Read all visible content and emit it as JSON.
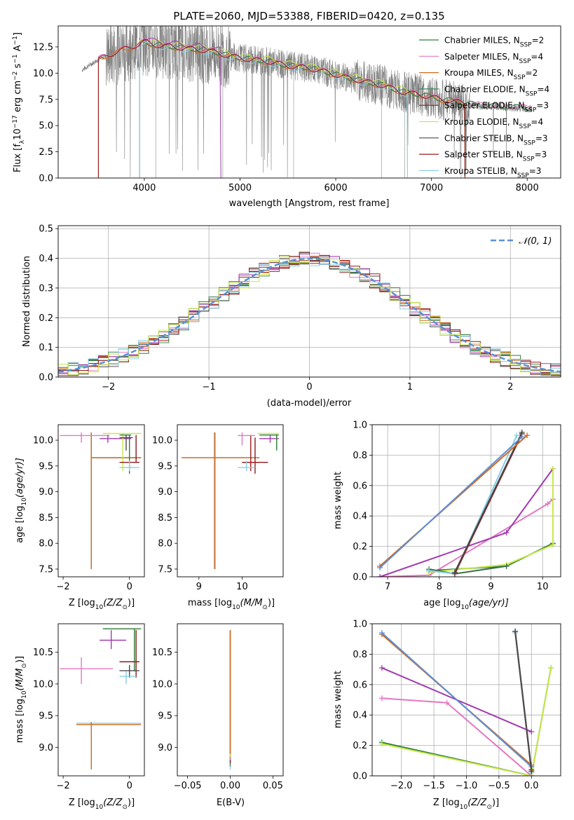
{
  "figure_title": "PLATE=2060, MJD=53388, FIBERID=0420, z=0.135",
  "colors": {
    "spectrum": "#808080",
    "models": [
      "#2e7d3a",
      "#e377c2",
      "#d2691e",
      "#3c8c56",
      "#8b1a1a",
      "#a13ab0",
      "#4a4a4a",
      "#9e1a1a",
      "#87cfe6"
    ],
    "normal": "#5b8fd6",
    "lime": "#c7e84a"
  },
  "chart_data": [
    {
      "id": "spectrum",
      "type": "line",
      "title": "PLATE=2060, MJD=53388, FIBERID=0420, z=0.135",
      "xlabel": "wavelength [Angstrom, rest frame]",
      "ylabel_main": "Flux [f",
      "ylabel_sub": "λ",
      "ylabel_rest": "10",
      "ylabel_exp": "−17",
      "ylabel_tail": " erg cm",
      "ylabel_exp2": "−2",
      "ylabel_tail2": " s",
      "ylabel_exp3": "−1",
      "ylabel_tail3": " A",
      "ylabel_exp4": "−1",
      "ylabel_end": "]",
      "xlim": [
        3100,
        8350
      ],
      "ylim": [
        0,
        14.5
      ],
      "xticks": [
        4000,
        5000,
        6000,
        7000,
        8000
      ],
      "yticks": [
        0.0,
        2.5,
        5.0,
        7.5,
        10.0,
        12.5
      ],
      "ytick_labels": [
        "0.0",
        "2.5",
        "5.0",
        "7.5",
        "10.0",
        "12.5"
      ],
      "continuum": [
        [
          3350,
          10.3
        ],
        [
          3500,
          11.2
        ],
        [
          3700,
          12.0
        ],
        [
          3900,
          12.6
        ],
        [
          4000,
          13.0
        ],
        [
          4100,
          12.7
        ],
        [
          4300,
          12.5
        ],
        [
          4500,
          12.3
        ],
        [
          4700,
          12.1
        ],
        [
          4900,
          11.6
        ],
        [
          5100,
          11.3
        ],
        [
          5300,
          11.1
        ],
        [
          5500,
          10.7
        ],
        [
          5700,
          10.5
        ],
        [
          5900,
          10.1
        ],
        [
          6100,
          9.6
        ],
        [
          6300,
          9.2
        ],
        [
          6500,
          8.8
        ],
        [
          6700,
          8.2
        ],
        [
          6900,
          7.9
        ],
        [
          7100,
          7.5
        ],
        [
          7300,
          7.2
        ],
        [
          7500,
          6.9
        ],
        [
          7700,
          6.8
        ],
        [
          7900,
          6.7
        ],
        [
          8050,
          6.6
        ]
      ],
      "legend": [
        {
          "label": "Chabrier MILES, N",
          "sub": "SSP",
          "eq": "=2"
        },
        {
          "label": "Salpeter MILES, N",
          "sub": "SSP",
          "eq": "=4"
        },
        {
          "label": "Kroupa MILES, N",
          "sub": "SSP",
          "eq": "=2"
        },
        {
          "label": "Chabrier ELODIE, N",
          "sub": "SSP",
          "eq": "=4"
        },
        {
          "label": "Salpeter ELODIE, N",
          "sub": "SSP",
          "eq": "=3"
        },
        {
          "label": "Kroupa ELODIE, N",
          "sub": "SSP",
          "eq": "=4"
        },
        {
          "label": "Chabrier STELIB, N",
          "sub": "SSP",
          "eq": "=3"
        },
        {
          "label": "Salpeter STELIB, N",
          "sub": "SSP",
          "eq": "=3"
        },
        {
          "label": "Kroupa STELIB, N",
          "sub": "SSP",
          "eq": "=3"
        }
      ],
      "legend_position": "top-right",
      "grid": false
    },
    {
      "id": "residuals",
      "type": "histogram",
      "xlabel": "(data-model)/error",
      "ylabel": "Normed distribution",
      "xlim": [
        -2.5,
        2.5
      ],
      "ylim": [
        0,
        0.51
      ],
      "xticks": [
        -2,
        -1,
        0,
        1,
        2
      ],
      "xtick_labels": [
        "−2",
        "−1",
        "0",
        "1",
        "2"
      ],
      "yticks": [
        0.0,
        0.1,
        0.2,
        0.3,
        0.4,
        0.5
      ],
      "ytick_labels": [
        "0.0",
        "0.1",
        "0.2",
        "0.3",
        "0.4",
        "0.5"
      ],
      "bin_width": 0.1,
      "legend": [
        {
          "label": "𝒩(0, 1)"
        }
      ],
      "legend_position": "top-right",
      "grid": true
    },
    {
      "id": "age_vs_Z",
      "type": "errorbar",
      "xlabel": "Z [log",
      "xlabel_sub": "10",
      "xlabel_end": "(Z/Z",
      "xlabel_sun": "⊙",
      "xlabel_close": ")]",
      "ylabel": "age  [log",
      "ylabel_sub": "10",
      "ylabel_end": "(age/yr)]",
      "xlim": [
        -2.15,
        0.45
      ],
      "ylim": [
        7.35,
        10.3
      ],
      "xticks": [
        -2,
        0
      ],
      "xtick_labels": [
        "−2",
        "0"
      ],
      "yticks": [
        7.5,
        8.0,
        8.5,
        9.0,
        9.5,
        10.0
      ],
      "ytick_labels": [
        "7.5",
        "8.0",
        "8.5",
        "9.0",
        "9.5",
        "10.0"
      ]
    },
    {
      "id": "age_vs_mass",
      "type": "errorbar",
      "xlabel": "mass [log",
      "xlabel_sub": "10",
      "xlabel_end": "(M/M",
      "xlabel_sun": "⊙",
      "xlabel_close": ")]",
      "xlim": [
        8.5,
        10.95
      ],
      "ylim": [
        7.35,
        10.3
      ],
      "xticks": [
        9,
        10
      ],
      "xtick_labels": [
        "9",
        "10"
      ],
      "yticks": [
        7.5,
        8.0,
        8.5,
        9.0,
        9.5,
        10.0
      ],
      "ytick_labels": [
        "7.5",
        "8.0",
        "8.5",
        "9.0",
        "9.5",
        "10.0"
      ]
    },
    {
      "id": "weight_vs_age",
      "type": "line",
      "xlabel": "age  [log",
      "xlabel_sub": "10",
      "xlabel_end": "(age/yr)]",
      "ylabel": "mass weight",
      "xlim": [
        6.7,
        10.35
      ],
      "ylim": [
        0,
        1.0
      ],
      "xticks": [
        7,
        8,
        9,
        10
      ],
      "xtick_labels": [
        "7",
        "8",
        "9",
        "10"
      ],
      "yticks": [
        0.0,
        0.2,
        0.4,
        0.6,
        0.8,
        1.0
      ],
      "ytick_labels": [
        "0.0",
        "0.2",
        "0.4",
        "0.6",
        "0.8",
        "1.0"
      ],
      "grid": true,
      "series": [
        {
          "color": "#e377c2",
          "x": [
            6.85,
            7.8,
            10.1,
            10.2
          ],
          "y": [
            0.0,
            0.01,
            0.48,
            0.51
          ]
        },
        {
          "color": "#a13ab0",
          "x": [
            6.85,
            9.3,
            10.2
          ],
          "y": [
            0.0,
            0.29,
            0.71
          ]
        },
        {
          "color": "#2e7d3a",
          "x": [
            7.8,
            9.3,
            10.2
          ],
          "y": [
            0.04,
            0.07,
            0.22
          ]
        },
        {
          "color": "#c7e84a",
          "x": [
            7.8,
            9.3,
            10.2,
            10.2
          ],
          "y": [
            0.03,
            0.08,
            0.21,
            0.71
          ]
        },
        {
          "color": "#3c6e4a",
          "x": [
            7.8,
            8.3,
            9.3
          ],
          "y": [
            0.05,
            0.02,
            0.07
          ]
        },
        {
          "color": "#87cfe6",
          "x": [
            7.8,
            8.3,
            9.5
          ],
          "y": [
            0.04,
            0.02,
            0.93
          ]
        },
        {
          "color": "#8b1a1a",
          "x": [
            8.3,
            9.6
          ],
          "y": [
            0.02,
            0.94
          ]
        },
        {
          "color": "#4a4a4a",
          "x": [
            8.3,
            9.6
          ],
          "y": [
            0.03,
            0.95
          ]
        },
        {
          "color": "#d2691e",
          "x": [
            6.85,
            9.7
          ],
          "y": [
            0.07,
            0.93
          ]
        },
        {
          "color": "#5b8fd6",
          "x": [
            6.85,
            9.6
          ],
          "y": [
            0.06,
            0.92
          ]
        }
      ]
    },
    {
      "id": "mass_vs_Z",
      "type": "errorbar",
      "xlabel": "Z [log",
      "xlabel_sub": "10",
      "xlabel_end": "(Z/Z",
      "xlabel_sun": "⊙",
      "xlabel_close": ")]",
      "ylabel": "mass [log",
      "ylabel_sub": "10",
      "ylabel_end": "(M/M",
      "ylabel_sun": "⊙",
      "ylabel_close": ")]",
      "xlim": [
        -2.15,
        0.45
      ],
      "ylim": [
        8.55,
        10.95
      ],
      "xticks": [
        -2,
        0
      ],
      "xtick_labels": [
        "−2",
        "0"
      ],
      "yticks": [
        9.0,
        9.5,
        10.0,
        10.5
      ],
      "ytick_labels": [
        "9.0",
        "9.5",
        "10.0",
        "10.5"
      ]
    },
    {
      "id": "mass_vs_ebv",
      "type": "errorbar",
      "xlabel": "E(B-V)",
      "xlim": [
        -0.062,
        0.062
      ],
      "ylim": [
        8.55,
        10.95
      ],
      "xticks": [
        -0.05,
        0.0,
        0.05
      ],
      "xtick_labels": [
        "−0.05",
        "0.00",
        "0.05"
      ],
      "yticks": [
        9.0,
        9.5,
        10.0,
        10.5
      ],
      "ytick_labels": [
        "9.0",
        "9.5",
        "10.0",
        "10.5"
      ]
    },
    {
      "id": "weight_vs_Z",
      "type": "line",
      "xlabel": "Z [log",
      "xlabel_sub": "10",
      "xlabel_end": "(Z/Z",
      "xlabel_sun": "⊙",
      "xlabel_close": ")]",
      "ylabel": "mass weight",
      "xlim": [
        -2.45,
        0.45
      ],
      "ylim": [
        0,
        1.0
      ],
      "xticks": [
        -2.0,
        -1.5,
        -1.0,
        -0.5,
        0.0
      ],
      "xtick_labels": [
        "−2.0",
        "−1.5",
        "−1.0",
        "−0.5",
        "0.0"
      ],
      "yticks": [
        0.0,
        0.2,
        0.4,
        0.6,
        0.8,
        1.0
      ],
      "ytick_labels": [
        "0.0",
        "0.2",
        "0.4",
        "0.6",
        "0.8",
        "1.0"
      ],
      "grid": true,
      "series": [
        {
          "color": "#e377c2",
          "x": [
            -2.3,
            -1.3,
            0.0
          ],
          "y": [
            0.51,
            0.48,
            0.0
          ]
        },
        {
          "color": "#a13ab0",
          "x": [
            -2.3,
            0.0
          ],
          "y": [
            0.71,
            0.29
          ]
        },
        {
          "color": "#2e7d3a",
          "x": [
            -2.3,
            0.0,
            0.3
          ],
          "y": [
            0.22,
            0.0,
            0.71
          ]
        },
        {
          "color": "#c7e84a",
          "x": [
            -2.3,
            0.0,
            0.3
          ],
          "y": [
            0.21,
            0.0,
            0.71
          ]
        },
        {
          "color": "#d2691e",
          "x": [
            -2.3,
            0.0
          ],
          "y": [
            0.93,
            0.07
          ]
        },
        {
          "color": "#5b8fd6",
          "x": [
            -2.3,
            0.0
          ],
          "y": [
            0.94,
            0.06
          ]
        },
        {
          "color": "#87cfe6",
          "x": [
            -0.25,
            0.0
          ],
          "y": [
            0.94,
            0.02
          ]
        },
        {
          "color": "#8b1a1a",
          "x": [
            -0.25,
            0.0
          ],
          "y": [
            0.95,
            0.03
          ]
        },
        {
          "color": "#4a4a4a",
          "x": [
            -0.25,
            0.0
          ],
          "y": [
            0.95,
            0.04
          ]
        }
      ]
    }
  ]
}
